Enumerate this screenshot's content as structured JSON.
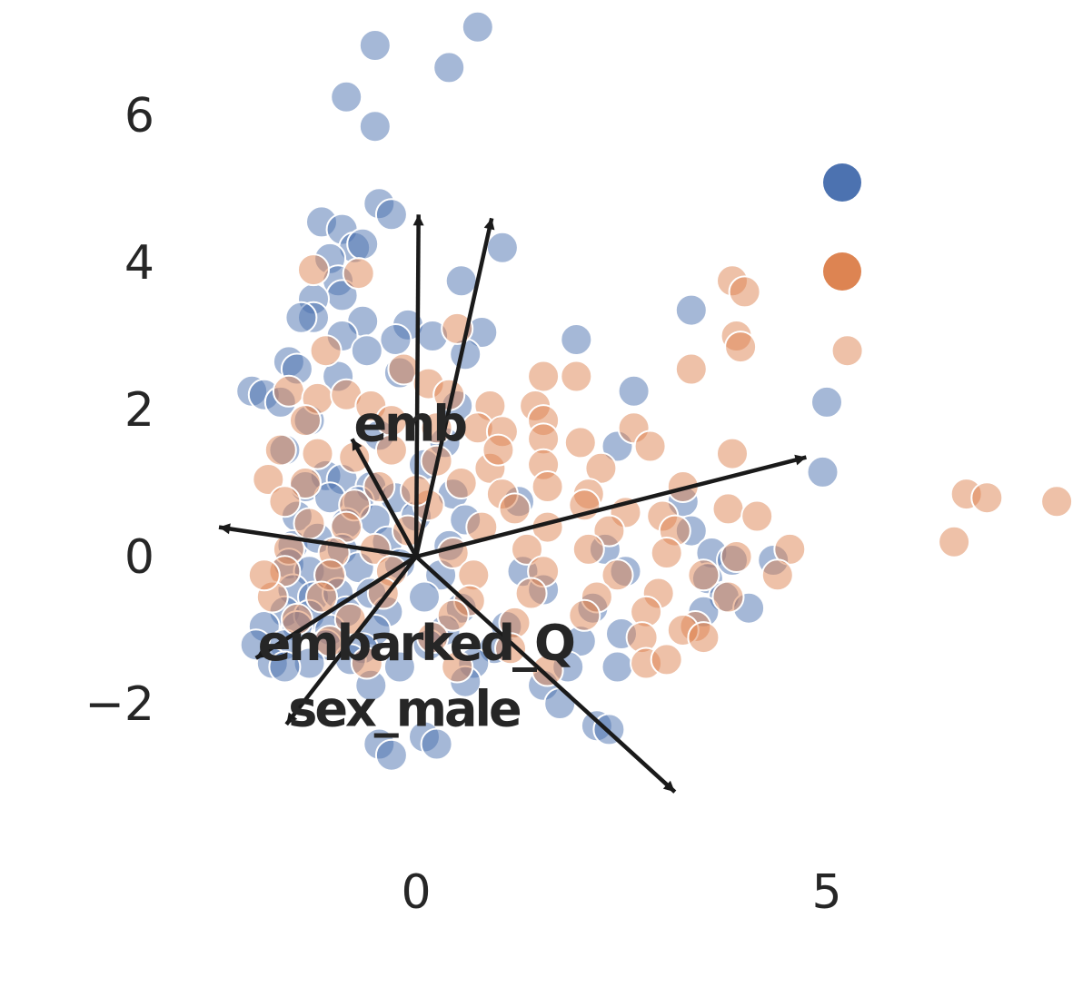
{
  "chart_data": {
    "type": "scatter",
    "title": "",
    "xlabel": "",
    "ylabel": "",
    "xlim": [
      -2.4,
      8.2
    ],
    "ylim": [
      -3.2,
      7.2
    ],
    "x_ticks": [
      {
        "value": 0,
        "label": "0"
      },
      {
        "value": 5,
        "label": "5"
      }
    ],
    "y_ticks": [
      {
        "value": -2,
        "label": "−2"
      },
      {
        "value": 0,
        "label": "0"
      },
      {
        "value": 2,
        "label": "2"
      },
      {
        "value": 4,
        "label": "4"
      },
      {
        "value": 6,
        "label": "6"
      }
    ],
    "grid": false,
    "legend": {
      "placement": "right",
      "entries": [
        {
          "color": "#4c72b0"
        },
        {
          "color": "#dd8452"
        }
      ]
    },
    "series": [
      {
        "color": "#4c72b0",
        "opacity": 0.5,
        "points": [
          [
            0.75,
            7.2
          ],
          [
            -0.5,
            6.95
          ],
          [
            0.4,
            6.65
          ],
          [
            -0.85,
            6.25
          ],
          [
            -0.5,
            5.85
          ],
          [
            -0.45,
            4.8
          ],
          [
            -0.3,
            4.65
          ],
          [
            -1.15,
            4.55
          ],
          [
            -0.9,
            4.45
          ],
          [
            -0.75,
            4.2
          ],
          [
            -0.65,
            4.25
          ],
          [
            -1.05,
            4.05
          ],
          [
            -0.95,
            3.75
          ],
          [
            -0.9,
            3.55
          ],
          [
            -1.25,
            3.5
          ],
          [
            0.55,
            3.75
          ],
          [
            1.05,
            4.2
          ],
          [
            -1.25,
            3.25
          ],
          [
            -1.4,
            3.25
          ],
          [
            -0.65,
            3.2
          ],
          [
            -0.9,
            3.0
          ],
          [
            -0.1,
            3.15
          ],
          [
            -0.25,
            2.95
          ],
          [
            0.2,
            3.0
          ],
          [
            0.8,
            3.05
          ],
          [
            1.95,
            2.95
          ],
          [
            3.35,
            3.35
          ],
          [
            -1.55,
            2.65
          ],
          [
            -1.45,
            2.55
          ],
          [
            -0.95,
            2.45
          ],
          [
            -0.6,
            2.8
          ],
          [
            0.6,
            2.75
          ],
          [
            -2.0,
            2.25
          ],
          [
            -1.85,
            2.2
          ],
          [
            -1.65,
            2.1
          ],
          [
            -0.2,
            2.5
          ],
          [
            0.5,
            2.05
          ],
          [
            2.65,
            2.25
          ],
          [
            5.0,
            2.1
          ],
          [
            -1.3,
            1.85
          ],
          [
            -0.45,
            1.65
          ],
          [
            0.35,
            1.55
          ],
          [
            2.45,
            1.5
          ],
          [
            4.95,
            1.15
          ],
          [
            -1.6,
            1.45
          ],
          [
            -1.1,
            1.1
          ],
          [
            -0.9,
            1.05
          ],
          [
            -0.55,
            0.95
          ],
          [
            0.1,
            1.25
          ],
          [
            0.45,
            0.85
          ],
          [
            -1.35,
            0.95
          ],
          [
            -1.05,
            0.8
          ],
          [
            -0.7,
            0.75
          ],
          [
            -0.25,
            0.8
          ],
          [
            1.25,
            0.75
          ],
          [
            3.25,
            0.75
          ],
          [
            -1.45,
            0.55
          ],
          [
            -0.85,
            0.45
          ],
          [
            -0.5,
            0.5
          ],
          [
            0.0,
            0.55
          ],
          [
            0.6,
            0.5
          ],
          [
            3.35,
            0.35
          ],
          [
            -1.5,
            0.15
          ],
          [
            -1.2,
            0.25
          ],
          [
            -0.9,
            0.1
          ],
          [
            -0.35,
            0.2
          ],
          [
            0.4,
            0.15
          ],
          [
            2.3,
            0.1
          ],
          [
            3.6,
            0.05
          ],
          [
            3.85,
            -0.05
          ],
          [
            4.35,
            -0.05
          ],
          [
            -1.55,
            -0.1
          ],
          [
            -1.3,
            -0.2
          ],
          [
            -1.05,
            -0.25
          ],
          [
            -0.7,
            -0.15
          ],
          [
            -0.2,
            -0.1
          ],
          [
            0.3,
            -0.25
          ],
          [
            1.3,
            -0.2
          ],
          [
            2.55,
            -0.2
          ],
          [
            3.55,
            -0.3
          ],
          [
            -1.5,
            -0.45
          ],
          [
            -1.25,
            -0.55
          ],
          [
            -0.95,
            -0.5
          ],
          [
            -0.55,
            -0.5
          ],
          [
            0.1,
            -0.55
          ],
          [
            1.55,
            -0.45
          ],
          [
            3.75,
            -0.55
          ],
          [
            -1.6,
            -0.75
          ],
          [
            -1.3,
            -0.8
          ],
          [
            -0.85,
            -0.75
          ],
          [
            -0.35,
            -0.75
          ],
          [
            0.55,
            -0.7
          ],
          [
            2.15,
            -0.7
          ],
          [
            3.5,
            -0.75
          ],
          [
            4.05,
            -0.7
          ],
          [
            -1.85,
            -0.95
          ],
          [
            -1.45,
            -0.95
          ],
          [
            -1.05,
            -1.0
          ],
          [
            -0.5,
            -1.0
          ],
          [
            0.35,
            -1.0
          ],
          [
            1.1,
            -0.95
          ],
          [
            2.5,
            -1.05
          ],
          [
            -1.95,
            -1.2
          ],
          [
            -1.6,
            -1.2
          ],
          [
            -1.1,
            -1.2
          ],
          [
            -0.65,
            -1.25
          ],
          [
            0.15,
            -1.2
          ],
          [
            0.95,
            -1.25
          ],
          [
            2.0,
            -1.15
          ],
          [
            -1.75,
            -1.45
          ],
          [
            -1.3,
            -1.45
          ],
          [
            -0.8,
            -1.4
          ],
          [
            -0.2,
            -1.5
          ],
          [
            0.7,
            -1.45
          ],
          [
            1.85,
            -1.5
          ],
          [
            2.45,
            -1.5
          ],
          [
            -0.55,
            -1.75
          ],
          [
            0.6,
            -1.7
          ],
          [
            1.55,
            -1.75
          ],
          [
            1.75,
            -2.0
          ],
          [
            2.2,
            -2.3
          ],
          [
            2.35,
            -2.35
          ],
          [
            -0.45,
            -2.55
          ],
          [
            -0.3,
            -2.7
          ],
          [
            0.1,
            -2.45
          ],
          [
            0.25,
            -2.55
          ],
          [
            -1.6,
            -1.5
          ]
        ]
      },
      {
        "color": "#dd8452",
        "opacity": 0.5,
        "points": [
          [
            -1.25,
            3.9
          ],
          [
            -0.7,
            3.85
          ],
          [
            3.85,
            3.75
          ],
          [
            4.0,
            3.6
          ],
          [
            0.5,
            3.1
          ],
          [
            3.9,
            3.0
          ],
          [
            3.95,
            2.85
          ],
          [
            5.25,
            2.8
          ],
          [
            3.35,
            2.55
          ],
          [
            -1.1,
            2.8
          ],
          [
            -0.15,
            2.55
          ],
          [
            0.15,
            2.35
          ],
          [
            1.55,
            2.45
          ],
          [
            1.95,
            2.45
          ],
          [
            -1.55,
            2.25
          ],
          [
            -1.2,
            2.15
          ],
          [
            -0.85,
            2.2
          ],
          [
            -0.55,
            2.05
          ],
          [
            0.9,
            2.05
          ],
          [
            1.45,
            2.05
          ],
          [
            1.55,
            1.85
          ],
          [
            2.65,
            1.75
          ],
          [
            2.85,
            1.5
          ],
          [
            3.85,
            1.4
          ],
          [
            -1.35,
            1.85
          ],
          [
            -0.3,
            1.85
          ],
          [
            0.25,
            1.75
          ],
          [
            0.75,
            1.75
          ],
          [
            1.05,
            1.7
          ],
          [
            1.55,
            1.6
          ],
          [
            2.0,
            1.55
          ],
          [
            -1.65,
            1.45
          ],
          [
            -1.2,
            1.4
          ],
          [
            -0.75,
            1.35
          ],
          [
            -0.3,
            1.45
          ],
          [
            0.25,
            1.3
          ],
          [
            0.9,
            1.2
          ],
          [
            1.55,
            1.25
          ],
          [
            2.25,
            1.2
          ],
          [
            -1.8,
            1.05
          ],
          [
            -1.35,
            1.0
          ],
          [
            -0.45,
            0.95
          ],
          [
            0.55,
            1.0
          ],
          [
            1.05,
            0.85
          ],
          [
            1.6,
            0.95
          ],
          [
            2.1,
            0.85
          ],
          [
            3.25,
            0.95
          ],
          [
            -1.6,
            0.75
          ],
          [
            -0.75,
            0.7
          ],
          [
            0.15,
            0.7
          ],
          [
            1.2,
            0.65
          ],
          [
            2.05,
            0.7
          ],
          [
            2.55,
            0.6
          ],
          [
            3.0,
            0.55
          ],
          [
            3.8,
            0.65
          ],
          [
            4.15,
            0.55
          ],
          [
            6.7,
            0.85
          ],
          [
            6.95,
            0.8
          ],
          [
            7.8,
            0.75
          ],
          [
            6.55,
            0.2
          ],
          [
            -1.3,
            0.45
          ],
          [
            -0.85,
            0.4
          ],
          [
            -0.1,
            0.35
          ],
          [
            0.8,
            0.4
          ],
          [
            1.6,
            0.4
          ],
          [
            2.35,
            0.35
          ],
          [
            3.15,
            0.35
          ],
          [
            4.55,
            0.1
          ],
          [
            -1.55,
            0.1
          ],
          [
            -1.0,
            0.05
          ],
          [
            -0.5,
            0.1
          ],
          [
            0.45,
            0.05
          ],
          [
            1.35,
            0.1
          ],
          [
            2.1,
            0.1
          ],
          [
            3.05,
            0.05
          ],
          [
            3.9,
            0.0
          ],
          [
            -1.6,
            -0.2
          ],
          [
            -1.05,
            -0.25
          ],
          [
            -0.3,
            -0.2
          ],
          [
            0.7,
            -0.25
          ],
          [
            1.55,
            -0.2
          ],
          [
            2.45,
            -0.25
          ],
          [
            3.5,
            -0.25
          ],
          [
            4.4,
            -0.25
          ],
          [
            -1.75,
            -0.55
          ],
          [
            -1.15,
            -0.55
          ],
          [
            -0.4,
            -0.5
          ],
          [
            0.65,
            -0.6
          ],
          [
            1.4,
            -0.5
          ],
          [
            2.2,
            -0.55
          ],
          [
            2.95,
            -0.5
          ],
          [
            3.8,
            -0.55
          ],
          [
            -1.45,
            -0.85
          ],
          [
            -0.8,
            -0.85
          ],
          [
            0.45,
            -0.8
          ],
          [
            1.2,
            -0.9
          ],
          [
            2.05,
            -0.8
          ],
          [
            2.8,
            -0.75
          ],
          [
            3.4,
            -0.95
          ],
          [
            -1.05,
            -1.15
          ],
          [
            0.2,
            -1.1
          ],
          [
            1.15,
            -1.25
          ],
          [
            2.75,
            -1.1
          ],
          [
            3.25,
            -1.0
          ],
          [
            3.5,
            -1.1
          ],
          [
            -0.6,
            -1.45
          ],
          [
            0.5,
            -1.5
          ],
          [
            1.6,
            -1.55
          ],
          [
            2.8,
            -1.45
          ],
          [
            3.05,
            -1.4
          ],
          [
            -1.85,
            -0.25
          ],
          [
            0.0,
            0.9
          ],
          [
            1.0,
            1.45
          ],
          [
            0.4,
            2.2
          ]
        ]
      }
    ],
    "loadings": [
      {
        "label": "",
        "x": 0.03,
        "y": 4.65
      },
      {
        "label": "",
        "x": 0.92,
        "y": 4.6
      },
      {
        "label": "emb",
        "x": -0.78,
        "y": 1.6
      },
      {
        "label": "",
        "x": 4.75,
        "y": 1.35
      },
      {
        "label": "",
        "x": -2.4,
        "y": 0.4
      },
      {
        "label": "embarked_Q",
        "x": -1.95,
        "y": -1.38
      },
      {
        "label": "sex_male",
        "x": -1.58,
        "y": -2.28
      },
      {
        "label": "",
        "x": 3.15,
        "y": -3.2
      }
    ]
  }
}
